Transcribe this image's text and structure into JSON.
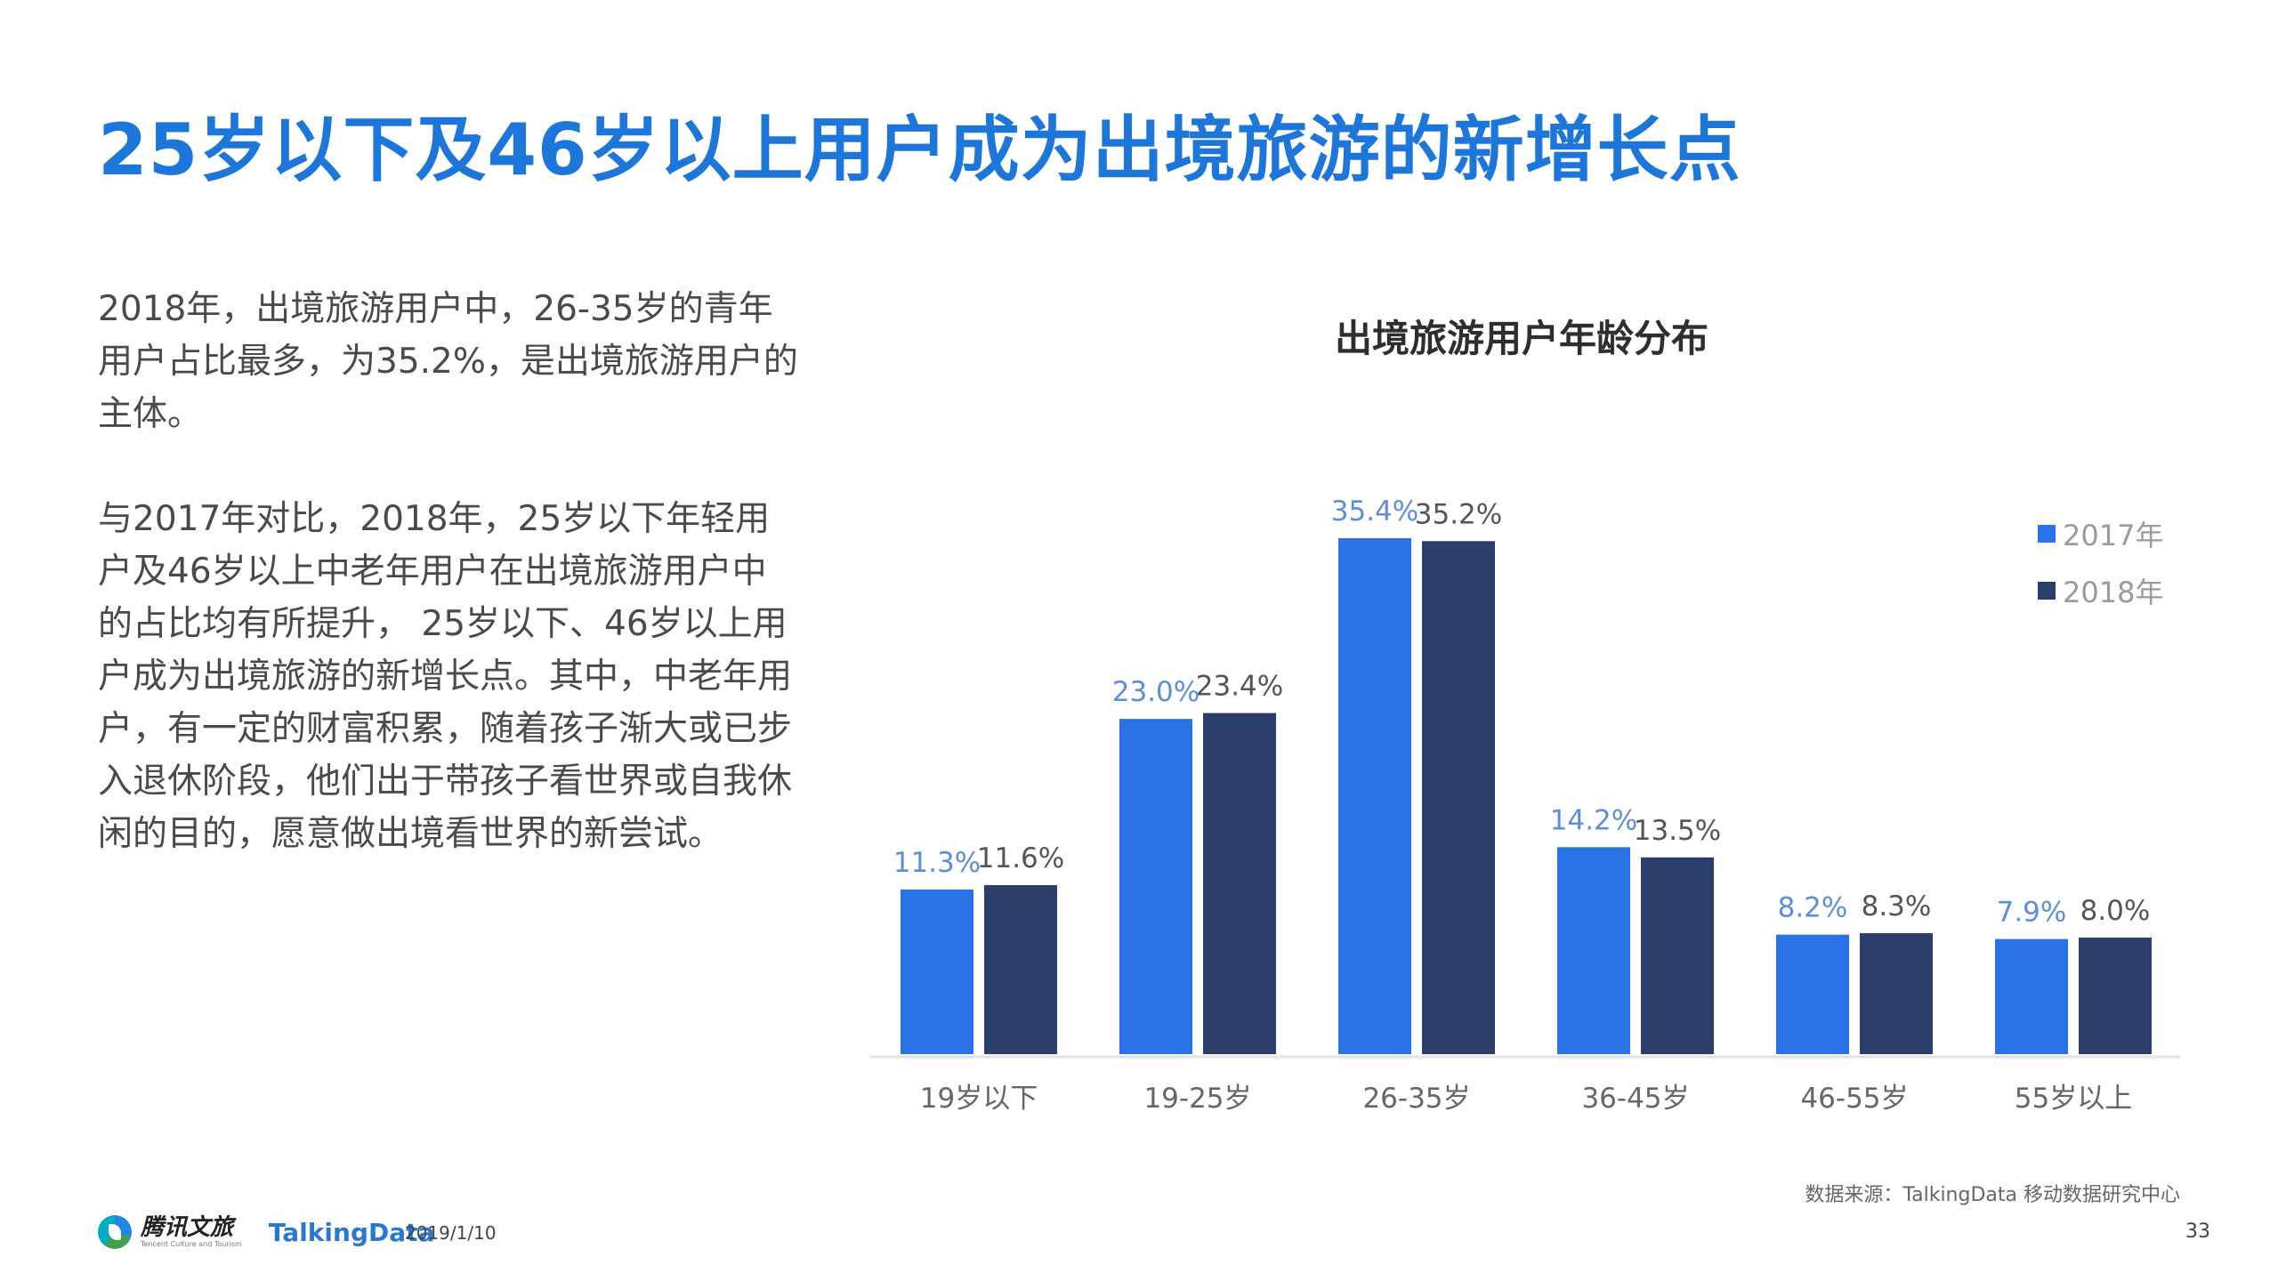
{
  "page": {
    "title": "25岁以下及46岁以上用户成为出境旅游的新增长点",
    "paragraph1": "2018年，出境旅游用户中，26-35岁的青年用户占比最多，为35.2%，是出境旅游用户的主体。",
    "paragraph2": "与2017年对比，2018年，25岁以下年轻用户及46岁以上中老年用户在出境旅游用户中的占比均有所提升， 25岁以下、46岁以上用户成为出境旅游的新增长点。其中，中老年用户，有一定的财富积累，随着孩子渐大或已步入退休阶段，他们出于带孩子看世界或自我休闲的目的，愿意做出境看世界的新尝试。"
  },
  "chart_data": {
    "type": "bar",
    "title": "出境旅游用户年龄分布",
    "categories": [
      "19岁以下",
      "19-25岁",
      "26-35岁",
      "36-45岁",
      "46-55岁",
      "55岁以上"
    ],
    "series": [
      {
        "name": "2017年",
        "color": "#2a73e6",
        "values": [
          11.3,
          23.0,
          35.4,
          14.2,
          8.2,
          7.9
        ],
        "labels": [
          "11.3%",
          "23.0%",
          "35.4%",
          "14.2%",
          "8.2%",
          "7.9%"
        ]
      },
      {
        "name": "2018年",
        "color": "#2b3d6b",
        "values": [
          11.6,
          23.4,
          35.2,
          13.5,
          8.3,
          8.0
        ],
        "labels": [
          "11.6%",
          "23.4%",
          "35.2%",
          "13.5%",
          "8.3%",
          "8.0%"
        ]
      }
    ],
    "ylim": [
      0,
      35.4
    ],
    "legend_position": "top-right",
    "grid": false,
    "colors": {
      "label_2017": "#5c8fd6",
      "label_2018": "#555555",
      "axis_label": "#666666"
    }
  },
  "footer": {
    "source": "数据来源：TalkingData 移动数据研究中心",
    "brand1": "腾讯文旅",
    "brand1_sub": "Tencent Culture and Tourism",
    "brand2": "TalkingData",
    "date": "2019/1/10",
    "page_number": "33"
  }
}
